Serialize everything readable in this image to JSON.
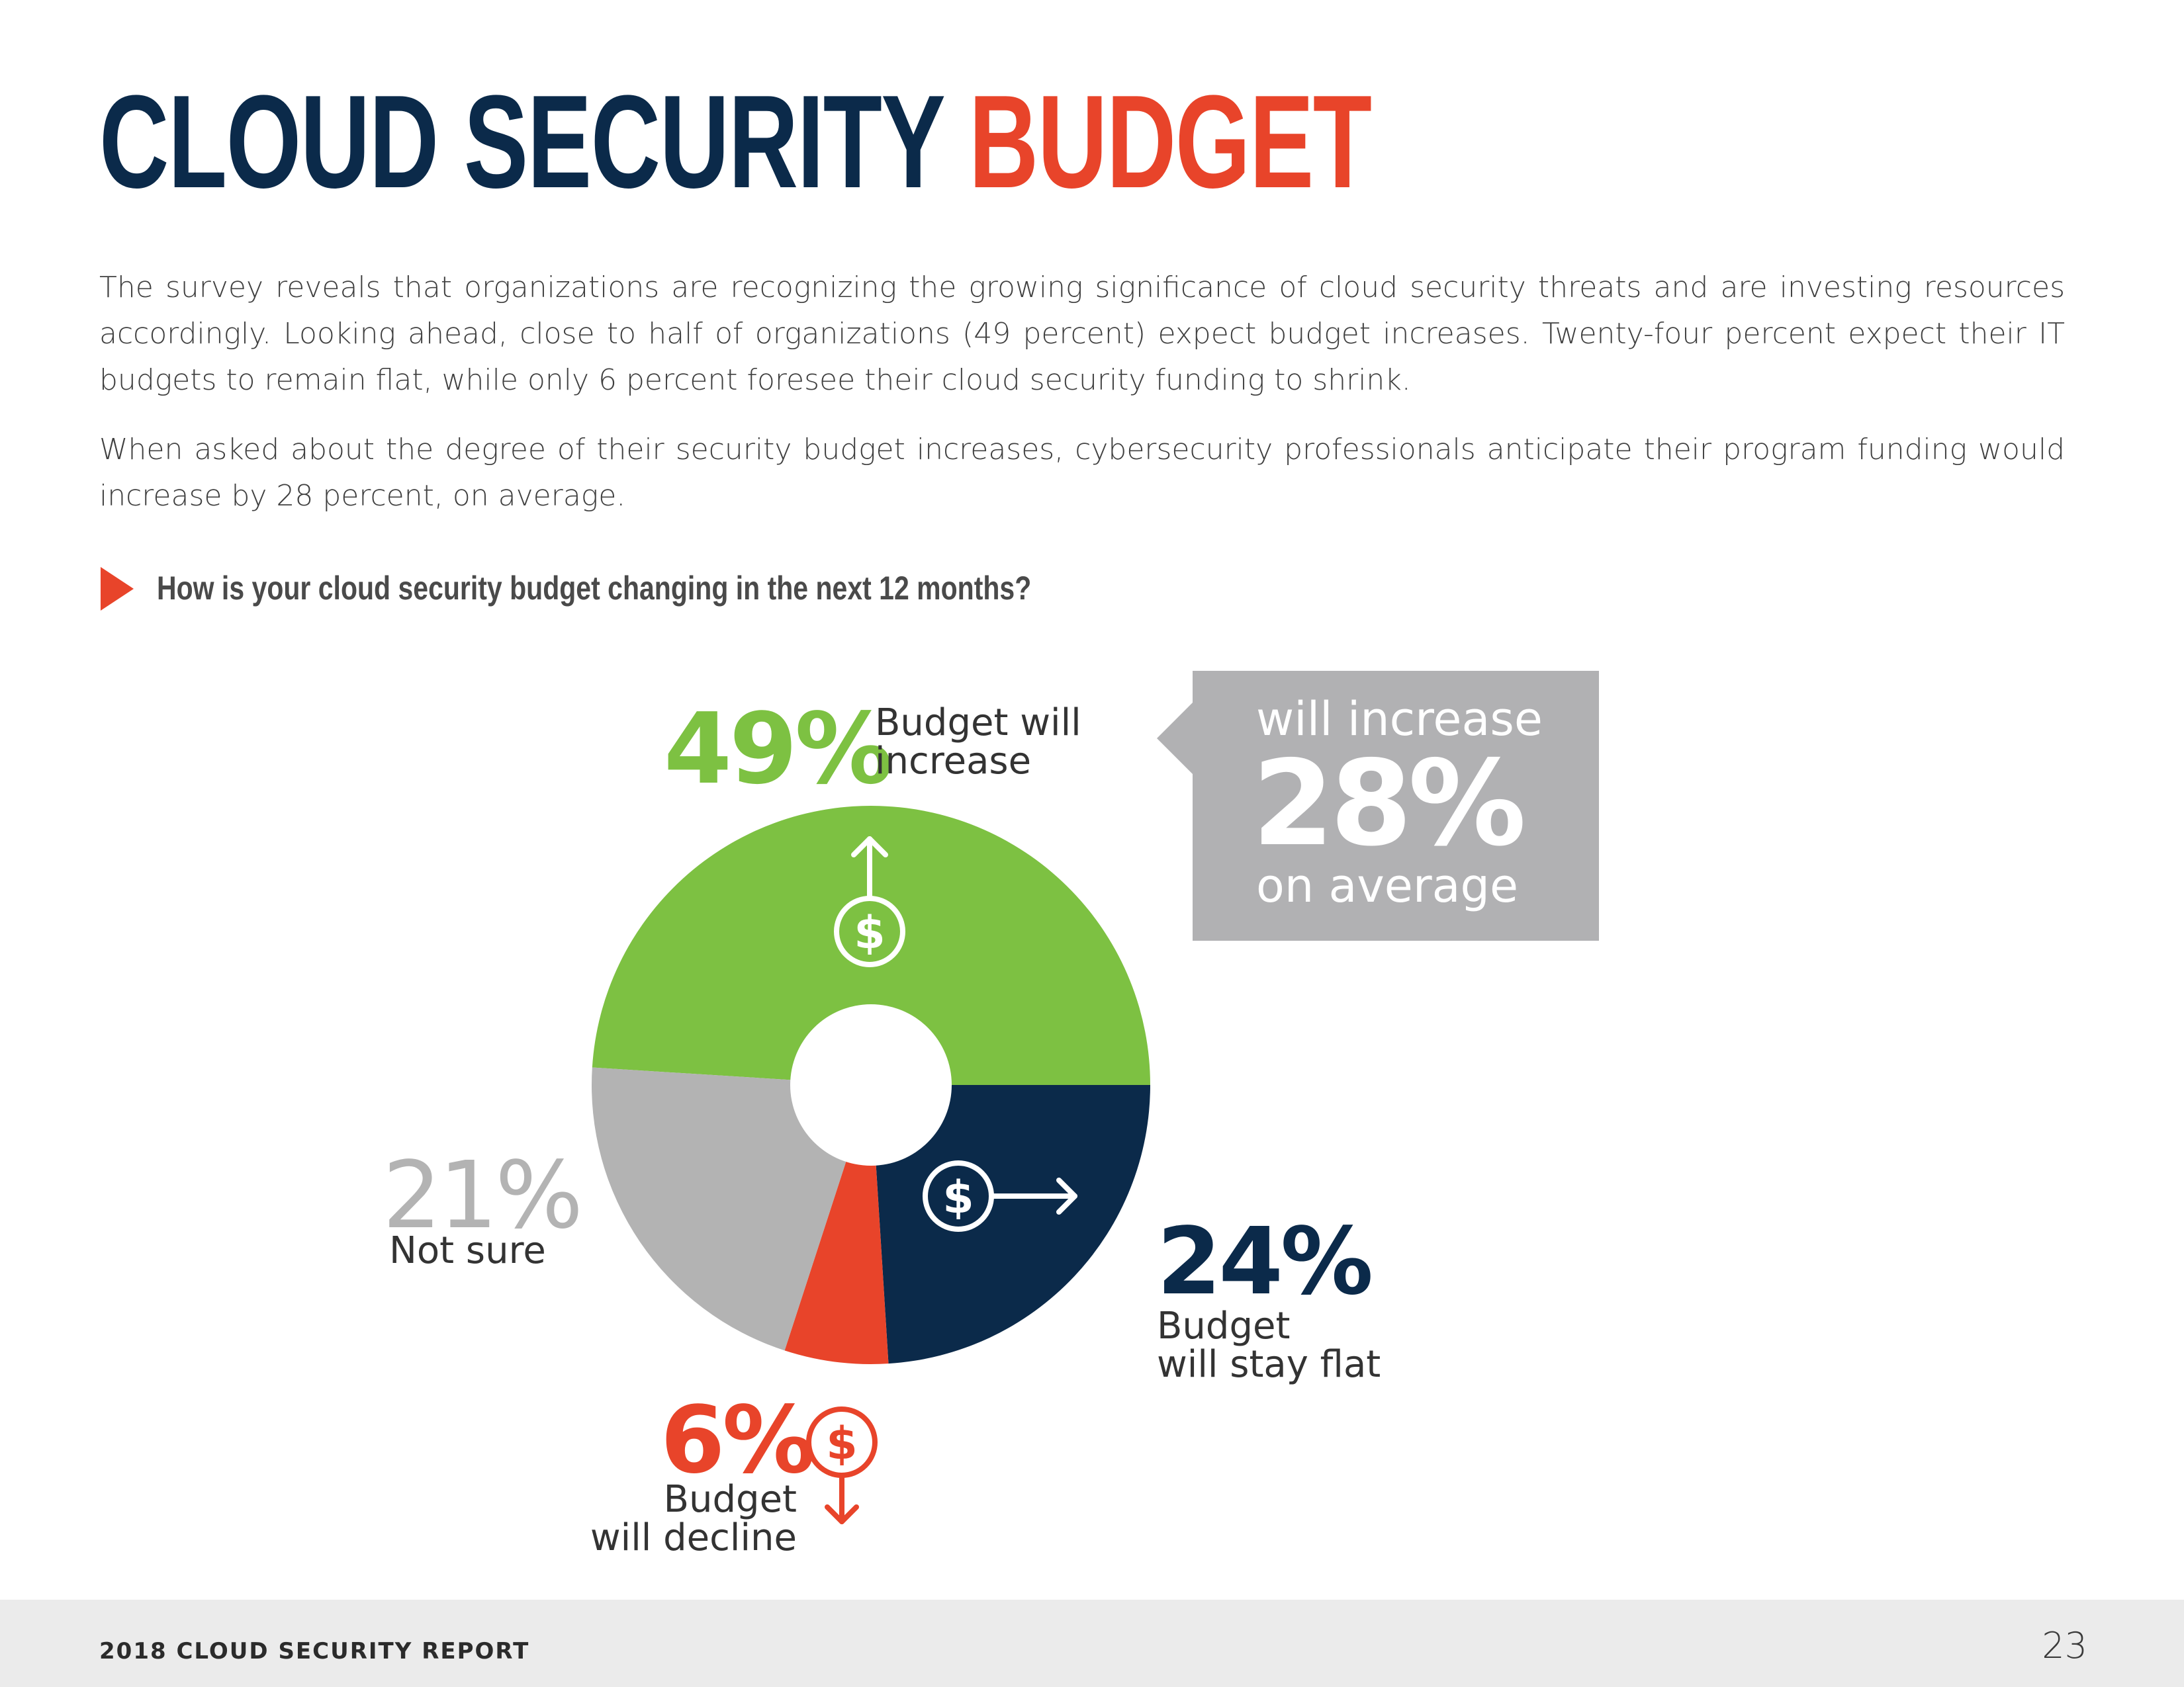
{
  "header": {
    "title_part1": "CLOUD SECURITY",
    "title_part2": "BUDGET"
  },
  "body": {
    "paragraph1": "The survey reveals that organizations are recognizing the growing significance of cloud security threats and are investing resources accordingly. Looking ahead, close to half of organizations (49 percent) expect budget increases. Twenty-four percent expect their IT budgets to remain flat, while only 6 percent foresee their cloud security funding to shrink.",
    "paragraph2": "When asked about the degree of their security budget increases, cybersecurity professionals anticipate their program funding would increase by 28 percent, on average."
  },
  "question": "How is your cloud security budget changing in the next 12 months?",
  "callout": {
    "top_text": "will increase",
    "value": "28%",
    "bottom_text": "on average"
  },
  "labels": {
    "increase_pct": "49%",
    "increase_line1": "Budget will",
    "increase_line2": "increase",
    "flat_pct": "24%",
    "flat_line1": "Budget",
    "flat_line2": "will stay flat",
    "decline_pct": "6%",
    "decline_line1": "Budget",
    "decline_line2": "will decline",
    "notsure_pct": "21%",
    "notsure_line1": "Not sure"
  },
  "chart_data": {
    "type": "pie",
    "title": "How is your cloud security budget changing in the next 12 months?",
    "categories": [
      "Budget will increase",
      "Budget will stay flat",
      "Budget will decline",
      "Not sure"
    ],
    "values": [
      49,
      24,
      6,
      21
    ],
    "unit": "%",
    "colors": [
      "#7dc142",
      "#0b2a4a",
      "#e8442a",
      "#b3b3b3"
    ],
    "icons": [
      "dollar-up-arrow-icon",
      "dollar-right-arrow-icon",
      "dollar-down-arrow-icon",
      ""
    ]
  },
  "footer": {
    "report_name": "2018 CLOUD SECURITY REPORT",
    "page_number": "23"
  }
}
